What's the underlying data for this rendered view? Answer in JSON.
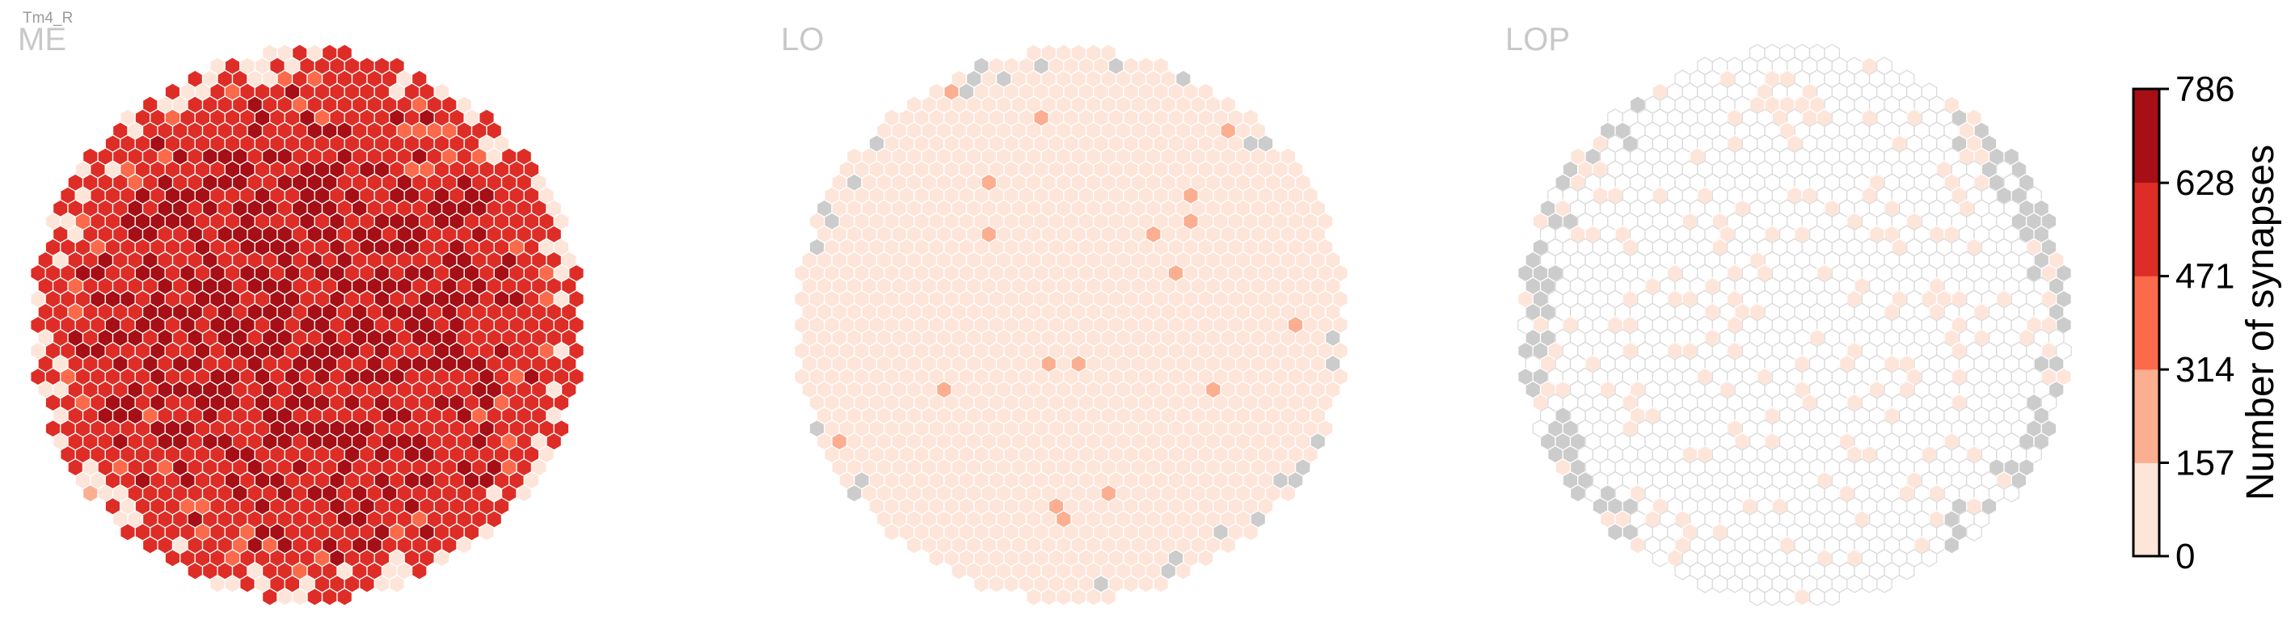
{
  "chart_data": {
    "type": "heatmap",
    "subtype": "hexagonal-column-map",
    "cell_type": "Tm4_R",
    "panels": [
      {
        "name": "ME",
        "shape": "circle",
        "value_profile": "high",
        "typical_value_range": [
          320,
          786
        ],
        "no_data_cells": "none"
      },
      {
        "name": "LO",
        "shape": "circle",
        "value_profile": "low",
        "typical_value_range": [
          10,
          120
        ],
        "occasional_value_range": [
          160,
          300
        ],
        "no_data_cells": "scattered along the rim"
      },
      {
        "name": "LOP",
        "shape": "circle",
        "value_profile": "mostly-zero",
        "typical_value_range": [
          0,
          0
        ],
        "occasional_value_range": [
          1,
          80
        ],
        "no_data_cells": "along the left and right rim"
      }
    ],
    "colorbar": {
      "label": "Number of synapses",
      "ticks": [
        0,
        157,
        314,
        471,
        628,
        786
      ],
      "range": [
        0,
        786
      ],
      "bins": 5,
      "colors": [
        "#fee5d9",
        "#fcae91",
        "#fb6a4a",
        "#de2d26",
        "#a50f15"
      ],
      "position": "right"
    },
    "no_data_color": "#cccccc",
    "zero_cell_edge_color": "#d9d9d9",
    "grid": false
  }
}
